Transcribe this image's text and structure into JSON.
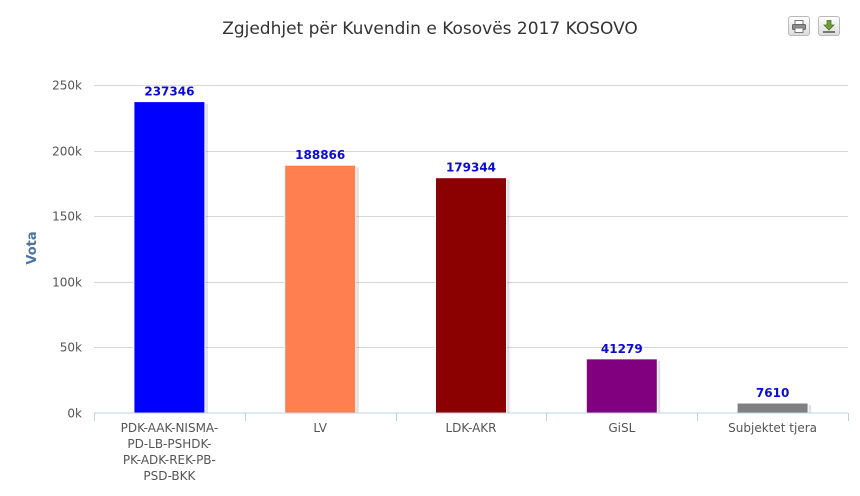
{
  "chart_data": {
    "type": "bar",
    "title": "Zgjedhjet për Kuvendin e Kosovës 2017 KOSOVO",
    "ylabel": "Vota",
    "xlabel": "",
    "ylim": [
      0,
      250000
    ],
    "ytick_values": [
      0,
      50000,
      100000,
      150000,
      200000,
      250000
    ],
    "ytick_labels": [
      "0k",
      "50k",
      "100k",
      "150k",
      "200k",
      "250k"
    ],
    "categories": [
      [
        "PDK-AAK-NISMA-",
        "PD-LB-PSHDK-",
        "PK-ADK-REK-PB-",
        "PSD-BKK"
      ],
      [
        "LV"
      ],
      [
        "LDK-AKR"
      ],
      [
        "GiSL"
      ],
      [
        "Subjektet tjera"
      ]
    ],
    "values": [
      237346,
      188866,
      179344,
      41279,
      7610
    ],
    "colors": [
      "#0000ff",
      "#ff7f50",
      "#8b0000",
      "#800080",
      "#808080"
    ],
    "data_label_color": "#0b0bd6",
    "grid": true,
    "legend": "none"
  },
  "toolbar": {
    "print_icon": "printer-icon",
    "download_icon": "download-icon"
  }
}
